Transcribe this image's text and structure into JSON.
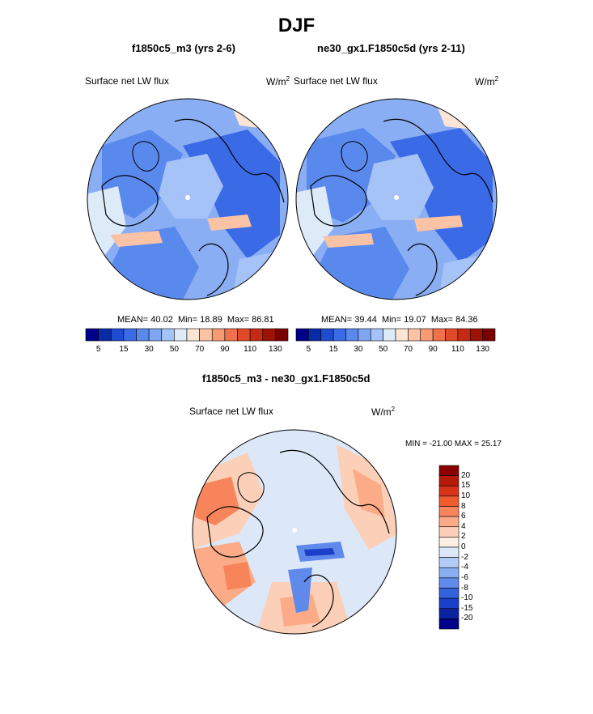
{
  "figure": {
    "title": "DJF"
  },
  "panels": [
    {
      "case": "f1850c5_m3 (yrs 2-6)",
      "variable": "Surface net LW flux",
      "units_base": "W/m",
      "units_exp": "2",
      "stats": {
        "mean_label": "MEAN=",
        "mean": "40.02",
        "min_label": "Min=",
        "min": "18.89",
        "max_label": "Max=",
        "max": "86.81"
      },
      "colorbar": {
        "ticks": [
          "5",
          "15",
          "30",
          "50",
          "70",
          "90",
          "110",
          "130"
        ],
        "colors": [
          "#00008b",
          "#0a2aa8",
          "#1f4bd1",
          "#3a6ae6",
          "#5a89ee",
          "#7fa6f3",
          "#a6c3f7",
          "#ddeaf8",
          "#fde5d5",
          "#fbc3a6",
          "#f79b74",
          "#f0714b",
          "#e04a28",
          "#c62a14",
          "#9e1206",
          "#7a0000"
        ]
      }
    },
    {
      "case": "ne30_gx1.F1850c5d (yrs 2-11)",
      "variable": "Surface net LW flux",
      "units_base": "W/m",
      "units_exp": "2",
      "stats": {
        "mean_label": "MEAN=",
        "mean": "39.44",
        "min_label": "Min=",
        "min": "19.07",
        "max_label": "Max=",
        "max": "84.36"
      },
      "colorbar": {
        "ticks": [
          "5",
          "15",
          "30",
          "50",
          "70",
          "90",
          "110",
          "130"
        ],
        "colors": [
          "#00008b",
          "#0a2aa8",
          "#1f4bd1",
          "#3a6ae6",
          "#5a89ee",
          "#7fa6f3",
          "#a6c3f7",
          "#ddeaf8",
          "#fde5d5",
          "#fbc3a6",
          "#f79b74",
          "#f0714b",
          "#e04a28",
          "#c62a14",
          "#9e1206",
          "#7a0000"
        ]
      }
    }
  ],
  "difference": {
    "title": "f1850c5_m3 - ne30_gx1.F1850c5d",
    "variable": "Surface net LW flux",
    "units_base": "W/m",
    "units_exp": "2",
    "minmax_label": "MIN = -21.00 MAX =  25.17",
    "colorbar": {
      "ticks": [
        "20",
        "15",
        "10",
        "8",
        "6",
        "4",
        "2",
        "0",
        "-2",
        "-4",
        "-6",
        "-8",
        "-10",
        "-15",
        "-20"
      ],
      "colors": [
        "#8b0000",
        "#b51a08",
        "#d8321a",
        "#ef5a2e",
        "#f7845a",
        "#fbab88",
        "#fcd0b8",
        "#fdeee4",
        "#dce8f8",
        "#b3ccf7",
        "#8aaef3",
        "#5f8aeb",
        "#3462de",
        "#1a3fc8",
        "#0a22a0",
        "#00008b"
      ]
    },
    "map_colors": {
      "neutral": "#dce8f8",
      "warm": "#f7845a",
      "warm2": "#fbab88",
      "warm3": "#fcd0b8",
      "cool": "#5f8aeb",
      "cool2": "#1a3fc8"
    }
  },
  "map_colors": {
    "base": "#8aaef3",
    "dark": "#5a89ee",
    "darker": "#3a6ae6",
    "light": "#a6c3f7",
    "pale": "#ddeaf8",
    "peach": "#fbc3a6",
    "pinkish": "#fde5d5"
  }
}
